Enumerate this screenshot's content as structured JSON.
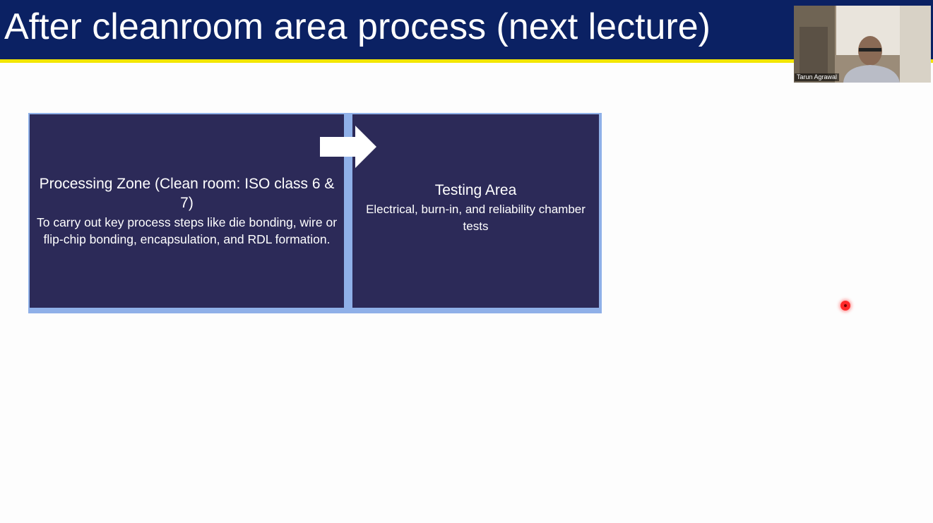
{
  "slide": {
    "title": "After cleanroom area process (next lecture)",
    "colors": {
      "title_bar": "#0b2163",
      "title_rule": "#f2e600",
      "box_fill": "#2c2a58",
      "box_border": "#8fb0e8",
      "laser_pointer": "#ff2a2a"
    }
  },
  "flow": {
    "processing_zone": {
      "title": "Processing Zone (Clean room: ISO class 6 & 7)",
      "body": "To carry out key process steps like die bonding, wire or flip-chip bonding, encapsulation, and RDL formation."
    },
    "arrow_icon": "right-arrow-icon",
    "testing_area": {
      "title": "Testing Area",
      "body": "Electrical, burn-in, and reliability chamber tests"
    }
  },
  "webcam": {
    "participant_name": "Tarun Agrawal"
  },
  "pointer": {
    "icon": "laser-pointer-icon"
  }
}
